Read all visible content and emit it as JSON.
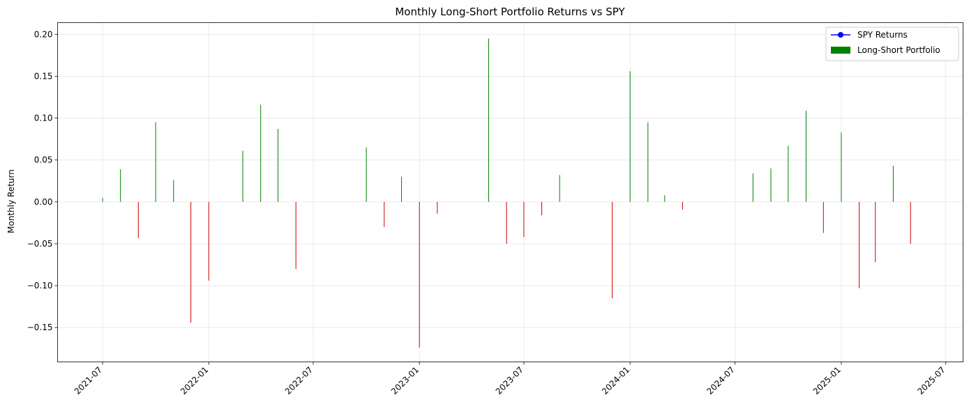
{
  "chart_data": {
    "type": "bar",
    "title": "Monthly Long-Short Portfolio Returns vs SPY",
    "xlabel": "",
    "ylabel": "Monthly Return",
    "x_tick_labels": [
      "2021-07",
      "2022-01",
      "2022-07",
      "2023-01",
      "2023-07",
      "2024-01",
      "2024-07",
      "2025-01",
      "2025-07"
    ],
    "y_tick_labels": [
      "0.20",
      "0.15",
      "0.10",
      "0.05",
      "0.00",
      "−0.05",
      "−0.10",
      "−0.15"
    ],
    "y_ticks": [
      0.2,
      0.15,
      0.1,
      0.05,
      0.0,
      -0.05,
      -0.1,
      -0.15
    ],
    "ylim": [
      -0.191,
      0.214
    ],
    "xlim": [
      "2021-04-14",
      "2025-07-31"
    ],
    "grid": true,
    "legend_position": "top-right",
    "legend": [
      {
        "label": "SPY Returns",
        "kind": "line-marker",
        "color": "#0000ff"
      },
      {
        "label": "Long-Short Portfolio",
        "kind": "patch",
        "color": "#008000"
      }
    ],
    "colors": {
      "positive": "#008000",
      "negative": "#cc0000",
      "spy": "#0000ff"
    },
    "series": [
      {
        "name": "Long-Short Portfolio",
        "x": [
          "2021-07-01",
          "2021-08-01",
          "2021-09-01",
          "2021-10-01",
          "2021-11-01",
          "2021-12-01",
          "2022-01-01",
          "2022-03-01",
          "2022-04-01",
          "2022-05-01",
          "2022-06-01",
          "2022-10-01",
          "2022-11-01",
          "2022-12-01",
          "2023-01-01",
          "2023-02-01",
          "2023-05-01",
          "2023-06-01",
          "2023-07-01",
          "2023-08-01",
          "2023-09-01",
          "2023-12-01",
          "2024-01-01",
          "2024-02-01",
          "2024-03-01",
          "2024-04-01",
          "2024-08-01",
          "2024-09-01",
          "2024-10-01",
          "2024-11-01",
          "2024-12-01",
          "2025-01-01",
          "2025-02-01",
          "2025-03-01",
          "2025-04-01",
          "2025-05-01"
        ],
        "values": [
          0.005,
          0.039,
          -0.043,
          0.095,
          0.026,
          -0.144,
          -0.094,
          0.061,
          0.116,
          0.087,
          -0.08,
          0.065,
          -0.03,
          0.03,
          -0.174,
          -0.014,
          0.195,
          -0.05,
          -0.042,
          -0.016,
          0.032,
          -0.115,
          0.156,
          0.095,
          0.008,
          -0.009,
          0.034,
          0.04,
          0.067,
          0.109,
          -0.037,
          0.083,
          -0.103,
          -0.072,
          0.043,
          -0.05
        ]
      }
    ]
  }
}
